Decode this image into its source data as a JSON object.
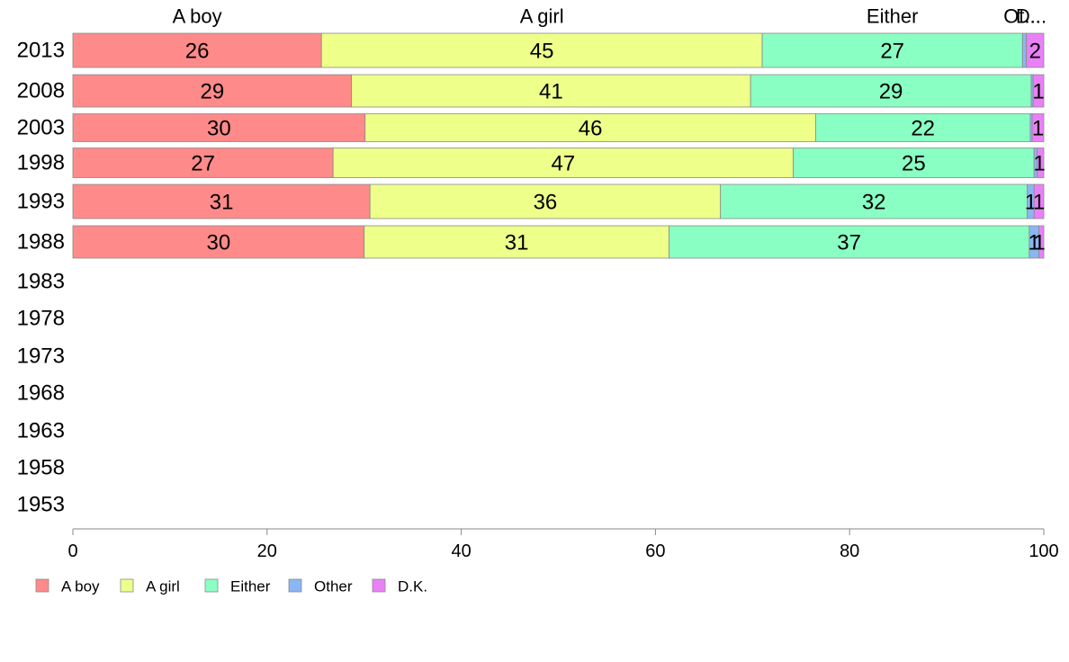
{
  "chart_data": {
    "type": "bar",
    "orientation": "horizontal",
    "stacked": true,
    "categories": [
      "2013",
      "2008",
      "2003",
      "1998",
      "1993",
      "1988",
      "1983",
      "1978",
      "1973",
      "1968",
      "1963",
      "1958",
      "1953"
    ],
    "series": [
      {
        "name": "A boy",
        "color": "#ff8a8a",
        "values": [
          25.6,
          28.7,
          30.1,
          26.8,
          30.6,
          30.0,
          null,
          null,
          null,
          null,
          null,
          null,
          null
        ],
        "labels": [
          "26",
          "29",
          "30",
          "27",
          "31",
          "30",
          "",
          "",
          "",
          "",
          "",
          "",
          ""
        ]
      },
      {
        "name": "A girl",
        "color": "#eeff8a",
        "values": [
          45.4,
          41.1,
          46.4,
          47.4,
          36.1,
          31.4,
          null,
          null,
          null,
          null,
          null,
          null,
          null
        ],
        "labels": [
          "45",
          "41",
          "46",
          "47",
          "36",
          "31",
          "",
          "",
          "",
          "",
          "",
          "",
          ""
        ]
      },
      {
        "name": "Either",
        "color": "#8affc4",
        "values": [
          26.8,
          28.9,
          22.1,
          24.8,
          31.6,
          37.1,
          null,
          null,
          null,
          null,
          null,
          null,
          null
        ],
        "labels": [
          "27",
          "29",
          "22",
          "25",
          "32",
          "37",
          "",
          "",
          "",
          "",
          "",
          "",
          ""
        ]
      },
      {
        "name": "Other",
        "color": "#8ab6f5",
        "values": [
          0.4,
          0.2,
          0.2,
          0.3,
          0.7,
          1.0,
          null,
          null,
          null,
          null,
          null,
          null,
          null
        ],
        "labels": [
          "",
          "",
          "",
          "",
          "1",
          "1",
          "",
          "",
          "",
          "",
          "",
          "",
          ""
        ]
      },
      {
        "name": "D.K.",
        "color": "#ea80f8",
        "values": [
          1.8,
          1.1,
          1.2,
          0.7,
          1.0,
          0.5,
          null,
          null,
          null,
          null,
          null,
          null,
          null
        ],
        "labels": [
          "2",
          "1",
          "1",
          "1",
          "1",
          "1",
          "",
          "",
          "",
          "",
          "",
          "",
          ""
        ]
      }
    ],
    "top_labels": [
      "A boy",
      "A girl",
      "Either",
      "Ot...",
      "D..."
    ],
    "xlim": [
      0,
      100
    ],
    "xticks": [
      "0",
      "20",
      "40",
      "60",
      "80",
      "100"
    ],
    "grid": false,
    "legend_position": "bottom-left"
  }
}
